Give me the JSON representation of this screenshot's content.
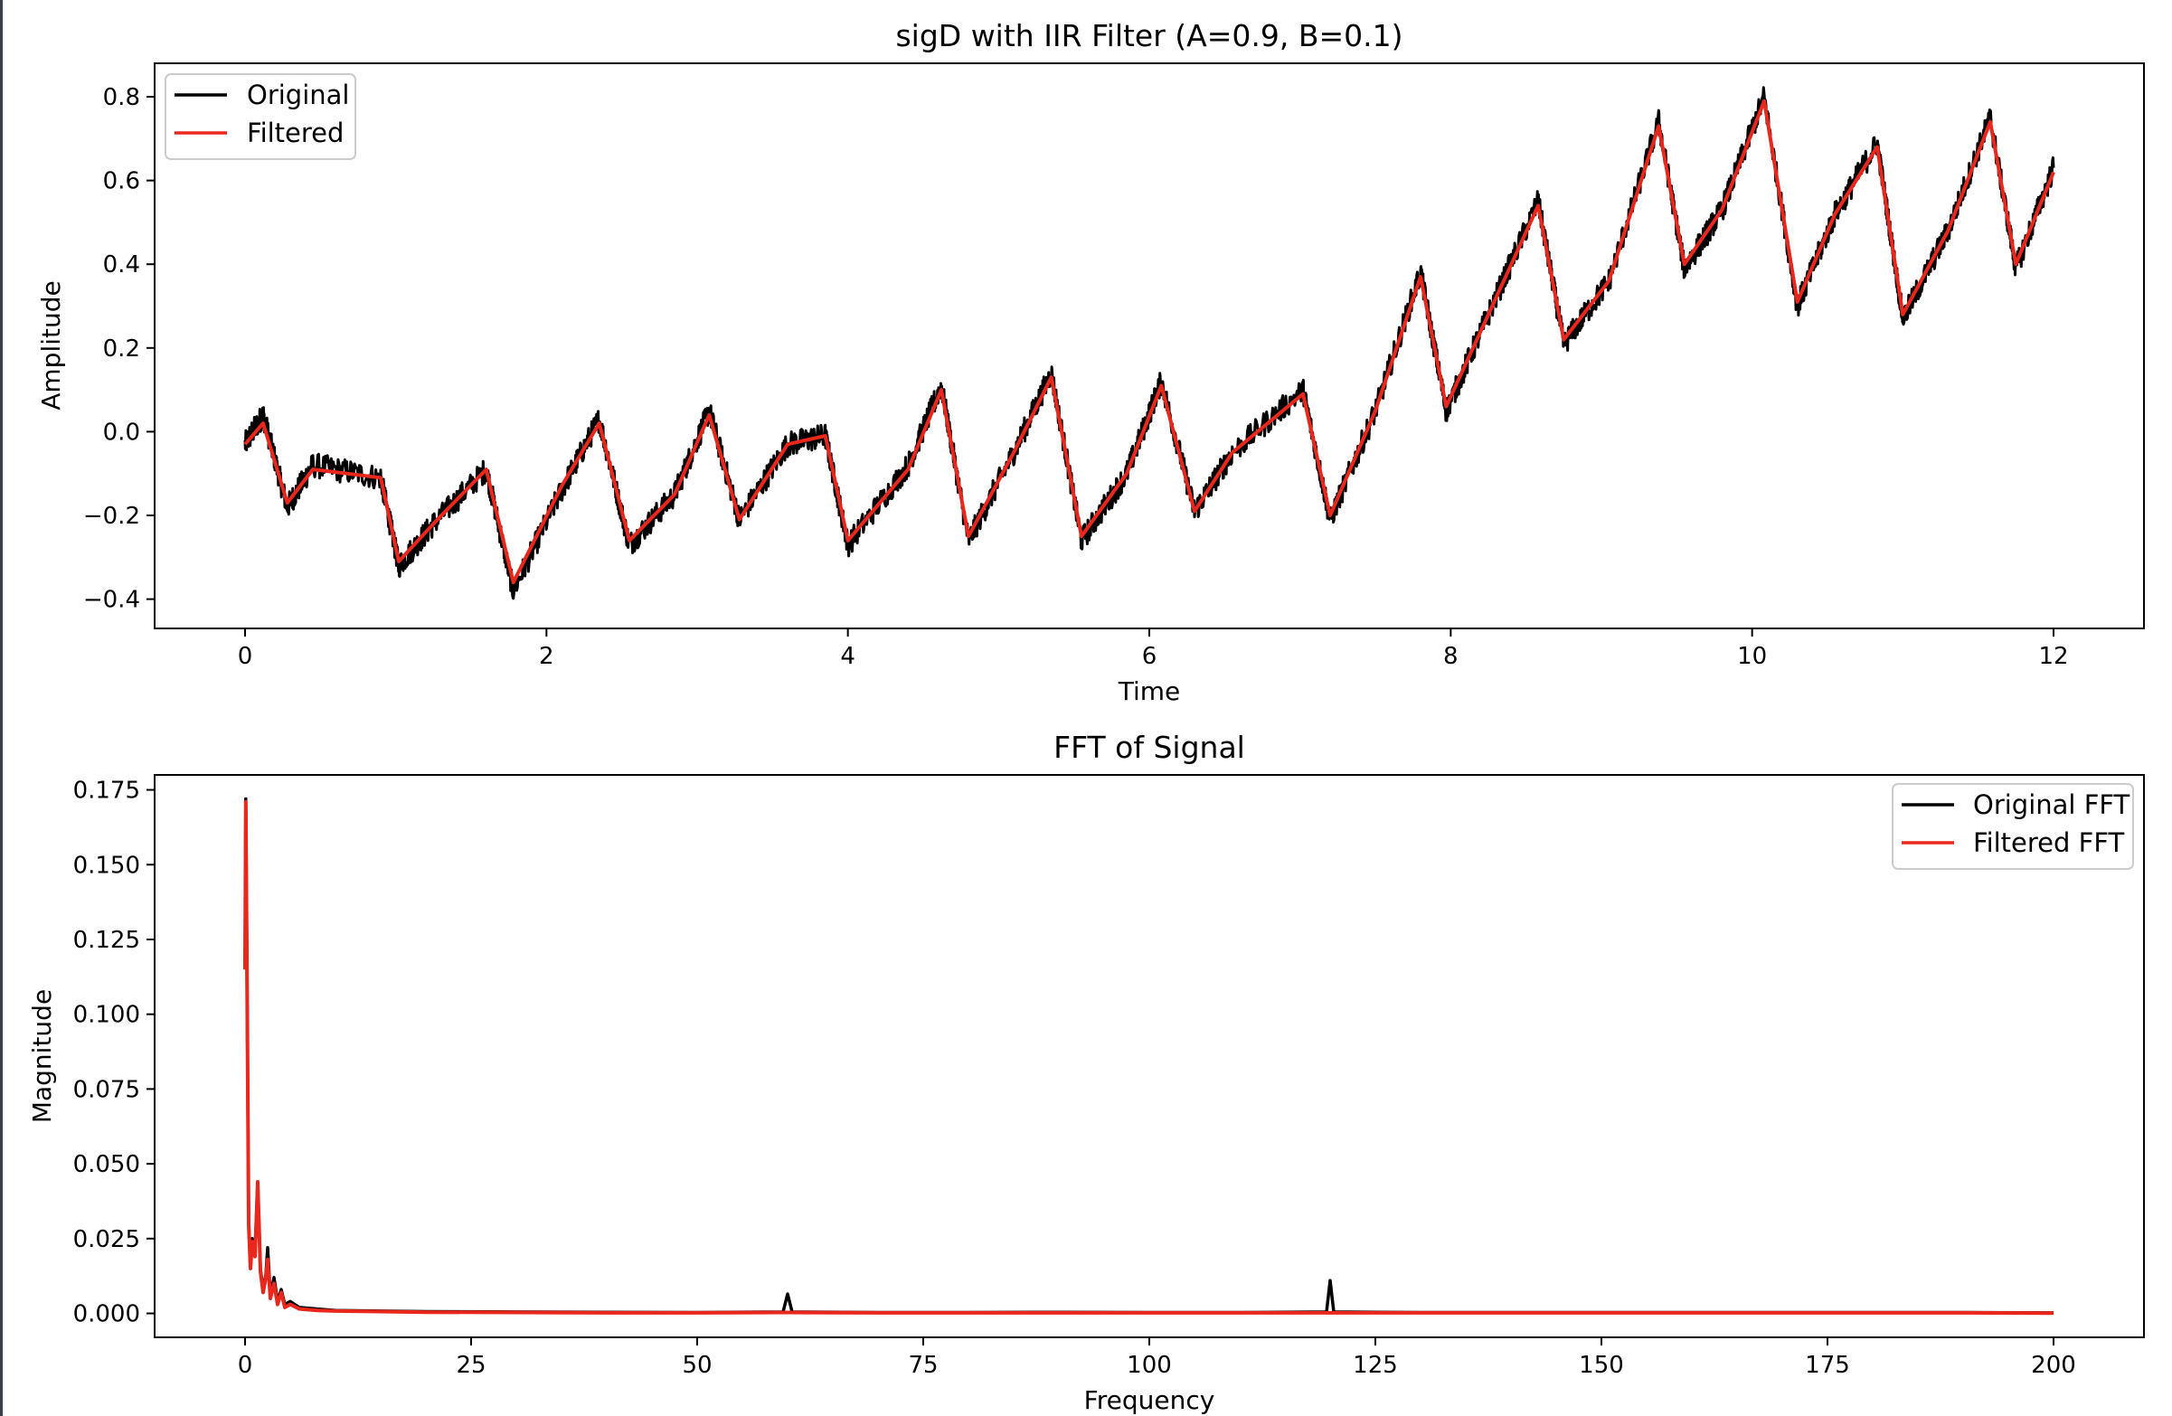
{
  "figure": {
    "left_strip_color": "#3a3f4b"
  },
  "chart_data": [
    {
      "type": "line",
      "title": "sigD with IIR Filter (A=0.9, B=0.1)",
      "xlabel": "Time",
      "ylabel": "Amplitude",
      "xlim": [
        -0.6,
        12.6
      ],
      "ylim": [
        -0.47,
        0.88
      ],
      "xticks": [
        0,
        2,
        4,
        6,
        8,
        10,
        12
      ],
      "xtick_labels": [
        "0",
        "2",
        "4",
        "6",
        "8",
        "10",
        "12"
      ],
      "yticks": [
        -0.4,
        -0.2,
        0.0,
        0.2,
        0.4,
        0.6,
        0.8
      ],
      "ytick_labels": [
        "−0.4",
        "−0.2",
        "0.0",
        "0.2",
        "0.4",
        "0.6",
        "0.8"
      ],
      "grid": false,
      "legend_position": "top-left",
      "series": [
        {
          "name": "Original",
          "color": "#000000",
          "x": [
            0,
            0.12,
            0.28,
            0.45,
            0.9,
            1.02,
            1.25,
            1.6,
            1.78,
            2.1,
            2.35,
            2.55,
            2.85,
            3.08,
            3.28,
            3.6,
            3.85,
            4.0,
            4.4,
            4.62,
            4.8,
            5.1,
            5.35,
            5.55,
            5.85,
            6.08,
            6.3,
            6.55,
            7.02,
            7.2,
            7.5,
            7.8,
            7.97,
            8.25,
            8.58,
            8.75,
            9.05,
            9.38,
            9.55,
            9.8,
            10.08,
            10.3,
            10.55,
            10.83,
            11.0,
            11.3,
            11.58,
            11.75,
            12.0
          ],
          "y": [
            -0.03,
            0.04,
            -0.18,
            -0.08,
            -0.11,
            -0.32,
            -0.22,
            -0.09,
            -0.38,
            -0.14,
            0.03,
            -0.27,
            -0.15,
            0.05,
            -0.21,
            -0.03,
            -0.01,
            -0.27,
            -0.08,
            0.11,
            -0.26,
            -0.05,
            0.14,
            -0.26,
            -0.1,
            0.12,
            -0.19,
            -0.05,
            0.1,
            -0.21,
            0.05,
            0.38,
            0.05,
            0.28,
            0.55,
            0.21,
            0.36,
            0.74,
            0.39,
            0.53,
            0.8,
            0.3,
            0.52,
            0.69,
            0.27,
            0.48,
            0.75,
            0.39,
            0.63
          ],
          "noise_amplitude": 0.03
        },
        {
          "name": "Filtered",
          "color": "#e8281d",
          "x": [
            0,
            0.12,
            0.28,
            0.45,
            0.9,
            1.02,
            1.25,
            1.6,
            1.78,
            2.1,
            2.35,
            2.55,
            2.85,
            3.08,
            3.28,
            3.6,
            3.85,
            4.0,
            4.4,
            4.62,
            4.8,
            5.1,
            5.35,
            5.55,
            5.85,
            6.08,
            6.3,
            6.55,
            7.02,
            7.2,
            7.5,
            7.8,
            7.97,
            8.25,
            8.58,
            8.75,
            9.05,
            9.38,
            9.55,
            9.8,
            10.08,
            10.3,
            10.55,
            10.83,
            11.0,
            11.3,
            11.58,
            11.75,
            12.0
          ],
          "y": [
            -0.03,
            0.02,
            -0.17,
            -0.09,
            -0.11,
            -0.31,
            -0.22,
            -0.09,
            -0.36,
            -0.13,
            0.02,
            -0.26,
            -0.15,
            0.04,
            -0.21,
            -0.03,
            -0.01,
            -0.26,
            -0.09,
            0.1,
            -0.25,
            -0.05,
            0.13,
            -0.25,
            -0.1,
            0.11,
            -0.19,
            -0.05,
            0.09,
            -0.2,
            0.05,
            0.37,
            0.06,
            0.28,
            0.54,
            0.22,
            0.36,
            0.73,
            0.4,
            0.53,
            0.79,
            0.31,
            0.52,
            0.68,
            0.28,
            0.48,
            0.74,
            0.4,
            0.62
          ],
          "noise_amplitude": 0.0
        }
      ]
    },
    {
      "type": "line",
      "title": "FFT of Signal",
      "xlabel": "Frequency",
      "ylabel": "Magnitude",
      "xlim": [
        -10,
        210
      ],
      "ylim": [
        -0.008,
        0.18
      ],
      "xticks": [
        0,
        25,
        50,
        75,
        100,
        125,
        150,
        175,
        200
      ],
      "xtick_labels": [
        "0",
        "25",
        "50",
        "75",
        "100",
        "125",
        "150",
        "175",
        "200"
      ],
      "yticks": [
        0.0,
        0.025,
        0.05,
        0.075,
        0.1,
        0.125,
        0.15,
        0.175
      ],
      "ytick_labels": [
        "0.000",
        "0.025",
        "0.050",
        "0.075",
        "0.100",
        "0.125",
        "0.150",
        "0.175"
      ],
      "grid": false,
      "legend_position": "top-right",
      "series": [
        {
          "name": "Original FFT",
          "color": "#000000",
          "x": [
            0,
            0.08,
            0.2,
            0.4,
            0.6,
            0.8,
            1.1,
            1.4,
            1.7,
            2.0,
            2.3,
            2.5,
            2.8,
            3.2,
            3.6,
            4.0,
            4.4,
            5.0,
            6.0,
            8.0,
            10.0,
            15.0,
            20.0,
            30.0,
            40.0,
            50.0,
            59.5,
            60.0,
            60.5,
            70.0,
            80.0,
            90.0,
            100.0,
            110.0,
            119.6,
            120.0,
            120.4,
            130.0,
            140.0,
            150.0,
            160.0,
            170.0,
            180.0,
            190.0,
            200.0
          ],
          "y": [
            0.115,
            0.172,
            0.12,
            0.03,
            0.015,
            0.025,
            0.02,
            0.044,
            0.015,
            0.008,
            0.013,
            0.022,
            0.006,
            0.012,
            0.004,
            0.008,
            0.003,
            0.004,
            0.002,
            0.0015,
            0.001,
            0.0008,
            0.0006,
            0.0005,
            0.0004,
            0.0003,
            0.0005,
            0.0065,
            0.0005,
            0.0003,
            0.0003,
            0.0004,
            0.0003,
            0.0003,
            0.0005,
            0.011,
            0.0005,
            0.0003,
            0.0003,
            0.0003,
            0.0003,
            0.0003,
            0.0003,
            0.0003,
            0.0002
          ]
        },
        {
          "name": "Filtered FFT",
          "color": "#e8281d",
          "x": [
            0,
            0.08,
            0.2,
            0.4,
            0.6,
            0.8,
            1.1,
            1.4,
            1.7,
            2.0,
            2.3,
            2.5,
            2.8,
            3.2,
            3.6,
            4.0,
            4.4,
            5.0,
            6.0,
            8.0,
            10.0,
            15.0,
            20.0,
            30.0,
            40.0,
            50.0,
            60.0,
            70.0,
            80.0,
            90.0,
            100.0,
            110.0,
            120.0,
            130.0,
            140.0,
            150.0,
            160.0,
            170.0,
            180.0,
            190.0,
            200.0
          ],
          "y": [
            0.115,
            0.171,
            0.12,
            0.03,
            0.015,
            0.024,
            0.019,
            0.044,
            0.014,
            0.007,
            0.012,
            0.018,
            0.005,
            0.01,
            0.003,
            0.007,
            0.002,
            0.003,
            0.0015,
            0.001,
            0.0008,
            0.0006,
            0.0004,
            0.0003,
            0.0002,
            0.0002,
            0.0003,
            0.0002,
            0.0002,
            0.0002,
            0.0002,
            0.0002,
            0.0002,
            0.0002,
            0.0002,
            0.0002,
            0.0002,
            0.0002,
            0.0002,
            0.0002,
            0.0001
          ]
        }
      ]
    }
  ]
}
